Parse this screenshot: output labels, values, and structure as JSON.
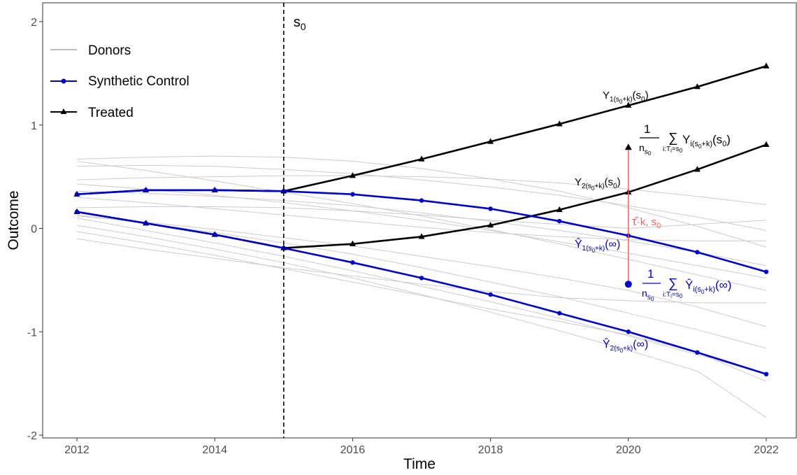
{
  "colors": {
    "donor": "#cccccc",
    "synthetic": "#0000cd",
    "treated": "#000000",
    "effect": "#ff5a5a"
  },
  "chart_data": {
    "type": "line",
    "xlabel": "Time",
    "ylabel": "Outcome",
    "xlim": [
      2012,
      2022
    ],
    "ylim": [
      -2,
      2
    ],
    "x_ticks": [
      "2012",
      "2014",
      "2016",
      "2018",
      "2020",
      "2022"
    ],
    "y_ticks": [
      "-2",
      "-1",
      "0",
      "1",
      "2"
    ],
    "grid": false,
    "legend_position": "top-left",
    "legend": [
      {
        "label": "Donors",
        "marker": "none"
      },
      {
        "label": "Synthetic Control",
        "marker": "circle"
      },
      {
        "label": "Treated",
        "marker": "triangle"
      }
    ],
    "vline": {
      "x": 2015,
      "label": "s0"
    },
    "x": [
      2012,
      2013,
      2014,
      2015,
      2016,
      2017,
      2018,
      2019,
      2020,
      2021,
      2022
    ],
    "series": [
      {
        "name": "Treated",
        "values": [
          0.33,
          0.37,
          0.37,
          0.36,
          0.51,
          0.67,
          0.84,
          1.01,
          1.19,
          1.37,
          1.57
        ]
      },
      {
        "name": "Treated",
        "values": [
          0.16,
          0.05,
          -0.06,
          -0.19,
          -0.15,
          -0.08,
          0.03,
          0.18,
          0.35,
          0.57,
          0.81
        ]
      },
      {
        "name": "Synthetic Control",
        "values": [
          0.33,
          0.37,
          0.37,
          0.36,
          0.33,
          0.27,
          0.19,
          0.07,
          -0.07,
          -0.23,
          -0.42
        ]
      },
      {
        "name": "Synthetic Control",
        "values": [
          0.16,
          0.05,
          -0.06,
          -0.19,
          -0.33,
          -0.48,
          -0.64,
          -0.82,
          -1.0,
          -1.2,
          -1.41
        ]
      }
    ],
    "donors": [
      [
        0.67,
        0.69,
        0.7,
        0.69,
        0.65,
        0.58,
        0.48,
        0.36,
        0.2,
        0.02,
        -0.18
      ],
      [
        0.65,
        0.56,
        0.46,
        0.35,
        0.24,
        0.12,
        -0.01,
        -0.15,
        -0.3,
        -0.45,
        -0.6
      ],
      [
        0.6,
        0.61,
        0.6,
        0.57,
        0.53,
        0.47,
        0.4,
        0.32,
        0.22,
        0.11,
        -0.02
      ],
      [
        0.47,
        0.49,
        0.5,
        0.51,
        0.51,
        0.5,
        0.48,
        0.44,
        0.38,
        0.31,
        0.23
      ],
      [
        0.43,
        0.38,
        0.32,
        0.25,
        0.17,
        0.08,
        -0.02,
        -0.13,
        -0.24,
        -0.36,
        -0.48
      ],
      [
        0.36,
        0.34,
        0.31,
        0.27,
        0.22,
        0.15,
        0.07,
        -0.02,
        -0.12,
        -0.23,
        -0.36
      ],
      [
        0.3,
        0.25,
        0.19,
        0.13,
        0.07,
        0.01,
        -0.04,
        -0.08,
        -0.11,
        -0.12,
        -0.12
      ],
      [
        0.2,
        0.21,
        0.21,
        0.2,
        0.17,
        0.13,
        0.08,
        0.04,
        0.0,
        0.04,
        0.08
      ],
      [
        0.13,
        0.05,
        -0.04,
        -0.14,
        -0.25,
        -0.38,
        -0.52,
        -0.66,
        -0.82,
        -0.98,
        -1.16
      ],
      [
        0.1,
        -0.02,
        -0.14,
        -0.27,
        -0.41,
        -0.56,
        -0.71,
        -0.87,
        -1.04,
        -1.22,
        -1.41
      ],
      [
        0.03,
        -0.08,
        -0.2,
        -0.33,
        -0.48,
        -0.64,
        -0.81,
        -0.99,
        -1.18,
        -1.38,
        -1.83
      ],
      [
        -0.03,
        -0.14,
        -0.26,
        -0.39,
        -0.52,
        -0.65,
        -0.78,
        -0.9,
        -1.03,
        -1.2,
        -1.48
      ],
      [
        -0.1,
        -0.2,
        -0.29,
        -0.38,
        -0.46,
        -0.54,
        -0.61,
        -0.67,
        -0.7,
        -0.72,
        -0.72
      ],
      [
        0.12,
        0.06,
        -0.01,
        -0.09,
        -0.17,
        -0.27,
        -0.37,
        -0.48,
        -0.6,
        -0.76,
        -0.95
      ]
    ],
    "effect_segment": {
      "x": 2020,
      "from": -0.54,
      "to": 0.78
    },
    "annotations": [
      {
        "text": "Y1(s0+k)(s0)",
        "x": 2020,
        "y": 1.3,
        "color": "treated"
      },
      {
        "text": "1/ns0 Σ i:Ti=s0 Yi(s0+k)(s0)",
        "x": 2020.1,
        "y": 0.9,
        "color": "treated"
      },
      {
        "text": "Y2(s0+k)(s0)",
        "x": 2018.5,
        "y": 0.45,
        "color": "treated"
      },
      {
        "text": "τ̂·k, s0",
        "x": 2020.1,
        "y": 0.12,
        "color": "effect"
      },
      {
        "text": "Ŷ1(s0+k)(∞)",
        "x": 2019.5,
        "y": -0.18,
        "color": "synthetic"
      },
      {
        "text": "1/ns0 Σ i:Ti=s0 Ŷi(s0+k)(∞)",
        "x": 2020.2,
        "y": -0.55,
        "color": "synthetic"
      },
      {
        "text": "Ŷ2(s0+k)(∞)",
        "x": 2019.3,
        "y": -1.12,
        "color": "synthetic"
      }
    ]
  }
}
